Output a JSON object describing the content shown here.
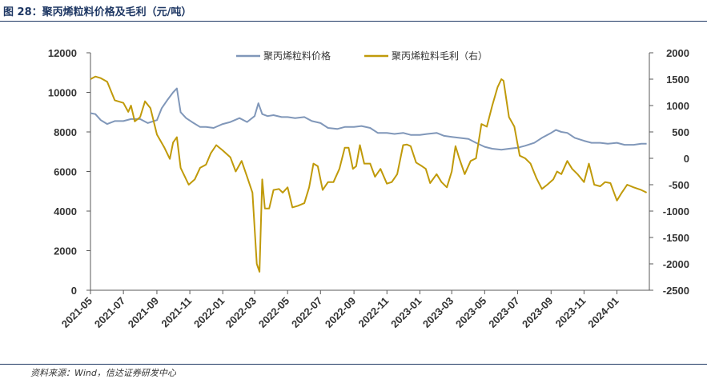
{
  "figure": {
    "title": "图 28：聚丙烯粒料价格及毛利（元/吨）",
    "source": "资料来源：Wind，信达证券研发中心"
  },
  "colors": {
    "price": "#8097b9",
    "margin": "#c09a0a",
    "axis": "#595959",
    "title": "#1f3864"
  },
  "chart_data": {
    "type": "line",
    "title": "",
    "xlabel": "",
    "ylabel": "",
    "ylim": [
      0,
      12000
    ],
    "y2lim": [
      -2500,
      2000
    ],
    "grid": false,
    "legend": "top",
    "left_ticks": [
      "12000",
      "10000",
      "8000",
      "6000",
      "4000",
      "2000",
      "0"
    ],
    "right_ticks": [
      "2000",
      "1500",
      "1000",
      "500",
      "0",
      "-500",
      "-1000",
      "-1500",
      "-2000",
      "-2500"
    ],
    "x_ticks": [
      "2021-05",
      "2021-07",
      "2021-09",
      "2021-11",
      "2022-01",
      "2022-03",
      "2022-05",
      "2022-07",
      "2022-09",
      "2022-11",
      "2023-01",
      "2023-03",
      "2023-05",
      "2023-07",
      "2023-09",
      "2023-11",
      "2024-01"
    ],
    "series": [
      {
        "name": "聚丙烯粒料价格",
        "axis": "left",
        "points": [
          [
            "2021-05-01",
            8950
          ],
          [
            "2021-05-10",
            8900
          ],
          [
            "2021-05-20",
            8600
          ],
          [
            "2021-06-01",
            8400
          ],
          [
            "2021-06-15",
            8550
          ],
          [
            "2021-07-01",
            8550
          ],
          [
            "2021-07-15",
            8650
          ],
          [
            "2021-08-01",
            8650
          ],
          [
            "2021-08-15",
            8450
          ],
          [
            "2021-09-01",
            8600
          ],
          [
            "2021-09-10",
            9200
          ],
          [
            "2021-09-20",
            9600
          ],
          [
            "2021-10-01",
            10000
          ],
          [
            "2021-10-08",
            10200
          ],
          [
            "2021-10-15",
            9000
          ],
          [
            "2021-10-25",
            8700
          ],
          [
            "2021-11-05",
            8500
          ],
          [
            "2021-11-20",
            8250
          ],
          [
            "2021-12-01",
            8250
          ],
          [
            "2021-12-15",
            8200
          ],
          [
            "2022-01-01",
            8400
          ],
          [
            "2022-01-15",
            8500
          ],
          [
            "2022-02-01",
            8700
          ],
          [
            "2022-02-15",
            8500
          ],
          [
            "2022-03-01",
            8800
          ],
          [
            "2022-03-08",
            9450
          ],
          [
            "2022-03-15",
            8900
          ],
          [
            "2022-03-25",
            8800
          ],
          [
            "2022-04-05",
            8850
          ],
          [
            "2022-04-20",
            8750
          ],
          [
            "2022-05-01",
            8750
          ],
          [
            "2022-05-15",
            8700
          ],
          [
            "2022-06-01",
            8750
          ],
          [
            "2022-06-15",
            8550
          ],
          [
            "2022-07-01",
            8450
          ],
          [
            "2022-07-15",
            8200
          ],
          [
            "2022-08-01",
            8150
          ],
          [
            "2022-08-15",
            8250
          ],
          [
            "2022-09-01",
            8250
          ],
          [
            "2022-09-15",
            8300
          ],
          [
            "2022-10-01",
            8200
          ],
          [
            "2022-10-15",
            7950
          ],
          [
            "2022-11-01",
            7950
          ],
          [
            "2022-11-15",
            7900
          ],
          [
            "2022-12-01",
            7950
          ],
          [
            "2022-12-15",
            7850
          ],
          [
            "2023-01-01",
            7850
          ],
          [
            "2023-01-15",
            7900
          ],
          [
            "2023-02-01",
            7950
          ],
          [
            "2023-02-15",
            7800
          ],
          [
            "2023-03-01",
            7750
          ],
          [
            "2023-03-15",
            7700
          ],
          [
            "2023-04-01",
            7650
          ],
          [
            "2023-04-15",
            7450
          ],
          [
            "2023-05-01",
            7250
          ],
          [
            "2023-05-15",
            7150
          ],
          [
            "2023-06-01",
            7100
          ],
          [
            "2023-06-15",
            7150
          ],
          [
            "2023-07-01",
            7200
          ],
          [
            "2023-07-15",
            7300
          ],
          [
            "2023-08-01",
            7450
          ],
          [
            "2023-08-15",
            7700
          ],
          [
            "2023-09-01",
            7950
          ],
          [
            "2023-09-10",
            8100
          ],
          [
            "2023-09-20",
            8000
          ],
          [
            "2023-10-01",
            7950
          ],
          [
            "2023-10-15",
            7700
          ],
          [
            "2023-11-01",
            7550
          ],
          [
            "2023-11-15",
            7450
          ],
          [
            "2023-12-01",
            7450
          ],
          [
            "2023-12-15",
            7400
          ],
          [
            "2024-01-01",
            7450
          ],
          [
            "2024-01-15",
            7350
          ],
          [
            "2024-02-01",
            7350
          ],
          [
            "2024-02-15",
            7400
          ],
          [
            "2024-02-25",
            7400
          ]
        ]
      },
      {
        "name": "聚丙烯粒料毛利（右）",
        "axis": "right",
        "points": [
          [
            "2021-05-01",
            1500
          ],
          [
            "2021-05-10",
            1550
          ],
          [
            "2021-05-20",
            1520
          ],
          [
            "2021-06-01",
            1450
          ],
          [
            "2021-06-15",
            1100
          ],
          [
            "2021-07-01",
            1050
          ],
          [
            "2021-07-10",
            880
          ],
          [
            "2021-07-15",
            1000
          ],
          [
            "2021-07-22",
            700
          ],
          [
            "2021-08-01",
            780
          ],
          [
            "2021-08-10",
            1080
          ],
          [
            "2021-08-20",
            950
          ],
          [
            "2021-09-01",
            450
          ],
          [
            "2021-09-15",
            200
          ],
          [
            "2021-09-25",
            -10
          ],
          [
            "2021-10-01",
            300
          ],
          [
            "2021-10-08",
            400
          ],
          [
            "2021-10-15",
            -180
          ],
          [
            "2021-10-30",
            -500
          ],
          [
            "2021-11-10",
            -400
          ],
          [
            "2021-11-20",
            -180
          ],
          [
            "2021-12-01",
            -120
          ],
          [
            "2021-12-10",
            100
          ],
          [
            "2021-12-20",
            250
          ],
          [
            "2022-01-01",
            150
          ],
          [
            "2022-01-15",
            20
          ],
          [
            "2022-01-25",
            -250
          ],
          [
            "2022-02-05",
            -50
          ],
          [
            "2022-02-15",
            -350
          ],
          [
            "2022-02-25",
            -650
          ],
          [
            "2022-03-05",
            -2000
          ],
          [
            "2022-03-10",
            -2150
          ],
          [
            "2022-03-15",
            -400
          ],
          [
            "2022-03-20",
            -950
          ],
          [
            "2022-03-28",
            -950
          ],
          [
            "2022-04-05",
            -600
          ],
          [
            "2022-04-15",
            -580
          ],
          [
            "2022-04-22",
            -650
          ],
          [
            "2022-05-01",
            -550
          ],
          [
            "2022-05-10",
            -930
          ],
          [
            "2022-05-20",
            -900
          ],
          [
            "2022-06-01",
            -850
          ],
          [
            "2022-06-10",
            -550
          ],
          [
            "2022-06-18",
            -100
          ],
          [
            "2022-06-26",
            -150
          ],
          [
            "2022-07-05",
            -600
          ],
          [
            "2022-07-15",
            -450
          ],
          [
            "2022-07-25",
            -450
          ],
          [
            "2022-08-05",
            -200
          ],
          [
            "2022-08-15",
            200
          ],
          [
            "2022-08-22",
            200
          ],
          [
            "2022-08-30",
            -200
          ],
          [
            "2022-09-05",
            -150
          ],
          [
            "2022-09-12",
            250
          ],
          [
            "2022-09-20",
            -100
          ],
          [
            "2022-10-01",
            -100
          ],
          [
            "2022-10-10",
            -350
          ],
          [
            "2022-10-20",
            -200
          ],
          [
            "2022-11-01",
            -480
          ],
          [
            "2022-11-10",
            -450
          ],
          [
            "2022-11-20",
            -300
          ],
          [
            "2022-12-01",
            250
          ],
          [
            "2022-12-08",
            260
          ],
          [
            "2022-12-15",
            230
          ],
          [
            "2022-12-25",
            -80
          ],
          [
            "2023-01-05",
            -150
          ],
          [
            "2023-01-12",
            -200
          ],
          [
            "2023-01-20",
            -470
          ],
          [
            "2023-02-01",
            -300
          ],
          [
            "2023-02-10",
            -450
          ],
          [
            "2023-02-20",
            -550
          ],
          [
            "2023-03-01",
            -250
          ],
          [
            "2023-03-08",
            230
          ],
          [
            "2023-03-15",
            0
          ],
          [
            "2023-03-25",
            -300
          ],
          [
            "2023-04-05",
            -50
          ],
          [
            "2023-04-15",
            0
          ],
          [
            "2023-04-25",
            650
          ],
          [
            "2023-05-05",
            600
          ],
          [
            "2023-05-15",
            1000
          ],
          [
            "2023-05-25",
            1350
          ],
          [
            "2023-06-01",
            1500
          ],
          [
            "2023-06-05",
            1470
          ],
          [
            "2023-06-15",
            780
          ],
          [
            "2023-06-25",
            600
          ],
          [
            "2023-07-05",
            50
          ],
          [
            "2023-07-15",
            0
          ],
          [
            "2023-07-25",
            -100
          ],
          [
            "2023-08-05",
            -380
          ],
          [
            "2023-08-15",
            -580
          ],
          [
            "2023-08-25",
            -500
          ],
          [
            "2023-09-05",
            -400
          ],
          [
            "2023-09-12",
            -250
          ],
          [
            "2023-09-20",
            -300
          ],
          [
            "2023-10-01",
            -50
          ],
          [
            "2023-10-10",
            -200
          ],
          [
            "2023-10-20",
            -300
          ],
          [
            "2023-11-01",
            -450
          ],
          [
            "2023-11-10",
            -100
          ],
          [
            "2023-11-20",
            -500
          ],
          [
            "2023-12-01",
            -530
          ],
          [
            "2023-12-10",
            -450
          ],
          [
            "2023-12-20",
            -470
          ],
          [
            "2024-01-01",
            -800
          ],
          [
            "2024-01-10",
            -650
          ],
          [
            "2024-01-20",
            -500
          ],
          [
            "2024-02-01",
            -550
          ],
          [
            "2024-02-15",
            -600
          ],
          [
            "2024-02-25",
            -650
          ]
        ]
      }
    ]
  }
}
